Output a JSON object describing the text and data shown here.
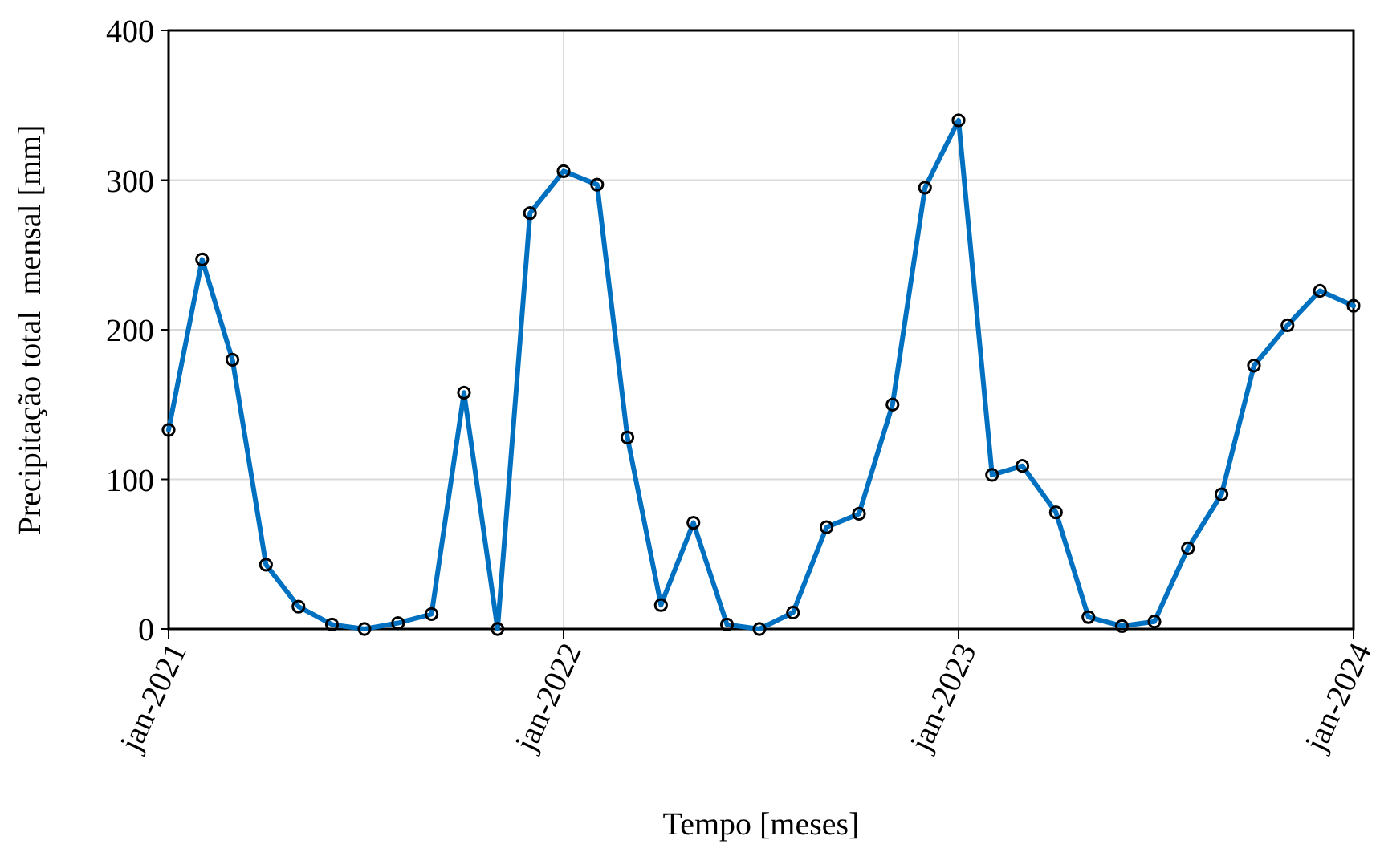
{
  "chart_data": {
    "type": "line",
    "xlabel": "Tempo [meses]",
    "ylabel": "Precipitação total  mensal [mm]",
    "x": [
      "2021-01",
      "2021-02",
      "2021-03",
      "2021-04",
      "2021-05",
      "2021-06",
      "2021-07",
      "2021-08",
      "2021-09",
      "2021-10",
      "2021-11",
      "2021-12",
      "2022-01",
      "2022-02",
      "2022-03",
      "2022-04",
      "2022-05",
      "2022-06",
      "2022-07",
      "2022-08",
      "2022-09",
      "2022-10",
      "2022-11",
      "2022-12",
      "2023-01",
      "2023-02",
      "2023-03",
      "2023-04",
      "2023-05",
      "2023-06",
      "2023-07",
      "2023-08",
      "2023-09",
      "2023-10",
      "2023-11",
      "2023-12",
      "2024-01"
    ],
    "series": [
      {
        "color": "#0070c0",
        "values": [
          133,
          247,
          180,
          43,
          15,
          3,
          0,
          4,
          10,
          158,
          0,
          278,
          306,
          297,
          128,
          16,
          71,
          3,
          0,
          11,
          68,
          77,
          150,
          295,
          340,
          103,
          109,
          78,
          8,
          2,
          5,
          54,
          90,
          176,
          203,
          226,
          216
        ]
      }
    ],
    "xlim": [
      "2021-01",
      "2024-01"
    ],
    "xticks": [
      {
        "value": "2021-01",
        "label": "jan-2021"
      },
      {
        "value": "2022-01",
        "label": "jan-2022"
      },
      {
        "value": "2023-01",
        "label": "jan-2023"
      },
      {
        "value": "2024-01",
        "label": "jan-2024"
      }
    ],
    "ylim": [
      0,
      400
    ],
    "yticks": [
      0,
      100,
      200,
      300,
      400
    ],
    "grid": true,
    "marker": "circle",
    "line_style": "solid"
  }
}
